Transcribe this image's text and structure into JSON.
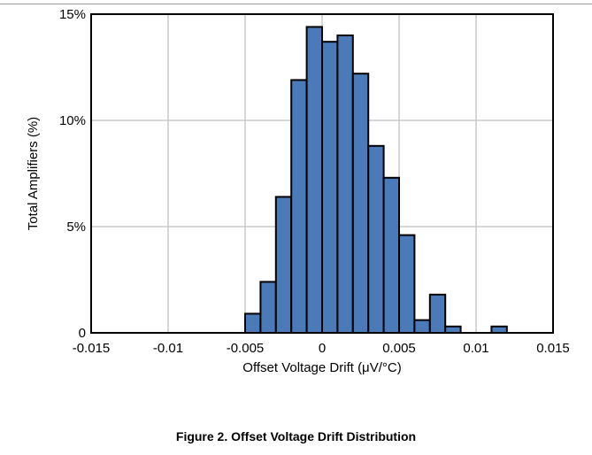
{
  "figure_caption": "Figure 2. Offset Voltage Drift Distribution",
  "chart_data": {
    "type": "bar",
    "xlabel": "Offset Voltage Drift (μV/°C)",
    "ylabel": "Total Amplifiers (%)",
    "xlim": [
      -0.015,
      0.015
    ],
    "ylim": [
      0,
      15
    ],
    "x_ticks": [
      "-0.015",
      "-0.01",
      "-0.005",
      "0",
      "0.005",
      "0.01",
      "0.015"
    ],
    "x_tick_values": [
      -0.015,
      -0.01,
      -0.005,
      0,
      0.005,
      0.01,
      0.015
    ],
    "y_ticks": [
      "0",
      "5%",
      "10%",
      "15%"
    ],
    "y_tick_values": [
      0,
      5,
      10,
      15
    ],
    "grid": true,
    "bar_color": "#4a7ab8",
    "bin_width": 0.001,
    "bin_starts": [
      -0.005,
      -0.004,
      -0.003,
      -0.002,
      -0.001,
      0.0,
      0.001,
      0.002,
      0.003,
      0.004,
      0.005,
      0.006,
      0.007,
      0.008,
      0.009,
      0.01,
      0.011
    ],
    "values": [
      0.9,
      2.4,
      6.4,
      11.9,
      14.4,
      13.7,
      14.0,
      12.2,
      8.8,
      7.3,
      4.6,
      0.6,
      1.8,
      0.3,
      0.0,
      0.0,
      0.3
    ]
  }
}
